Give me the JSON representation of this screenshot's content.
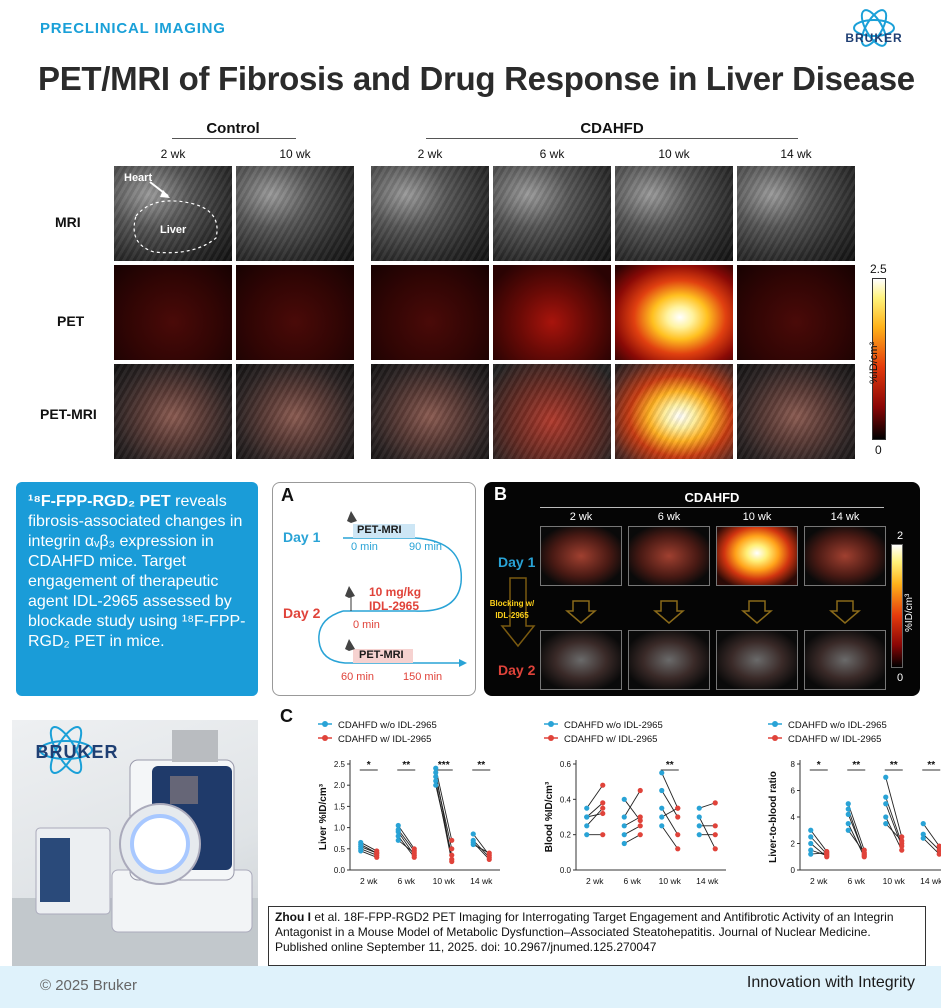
{
  "header": {
    "section_tag": "PRECLINICAL IMAGING",
    "logo_text": "BRUKER",
    "title": "PET/MRI of Fibrosis and Drug Response in Liver Disease"
  },
  "imaging_grid": {
    "group_control": "Control",
    "group_cdahfd": "CDAHFD",
    "control_timepoints": [
      "2 wk",
      "10 wk"
    ],
    "cdahfd_timepoints": [
      "2 wk",
      "6 wk",
      "10 wk",
      "14 wk"
    ],
    "rows": [
      "MRI",
      "PET",
      "PET-MRI"
    ],
    "annotations": {
      "heart": "Heart",
      "liver": "Liver"
    },
    "colorbar": {
      "max": "2.5",
      "min": "0",
      "unit": "%ID/cm³"
    }
  },
  "info_box": {
    "part1_bold": "¹⁸F-FPP-RGD₂ PET",
    "part1_rest": " reveals fibrosis-associated changes in integrin αᵥβ₃ expression in CDAHFD mice. Target engagement of therapeutic agent IDL-2965 assessed by blockade study using ¹⁸F-FPP-RGD₂ PET in mice."
  },
  "panel_a": {
    "letter": "A",
    "day1": "Day 1",
    "day2": "Day 2",
    "pet_mri_1": "PET-MRI",
    "t0_day1": "0 min",
    "t90": "90 min",
    "dose": "10 mg/kg",
    "drug": "IDL-2965",
    "t0_day2": "0 min",
    "pet_mri_2": "PET-MRI",
    "t60": "60 min",
    "t150": "150 min"
  },
  "panel_b": {
    "letter": "B",
    "title": "CDAHFD",
    "timepoints": [
      "2 wk",
      "6 wk",
      "10 wk",
      "14 wk"
    ],
    "day1": "Day 1",
    "day2": "Day 2",
    "blocking": "Blocking w/ IDL-2965",
    "cb_max": "2",
    "cb_min": "0",
    "cb_unit": "%ID/cm³"
  },
  "photo": {
    "logo_text": "BRUKER"
  },
  "panel_c": {
    "letter": "C"
  },
  "chart_data": [
    {
      "type": "scatter",
      "ylabel": "Liver %ID/cm³",
      "categories": [
        "2 wk",
        "6 wk",
        "10 wk",
        "14 wk"
      ],
      "ylim": [
        0,
        2.5
      ],
      "yticks": [
        "0.0",
        "0.5",
        "1.0",
        "1.5",
        "2.0",
        "2.5"
      ],
      "significance": [
        "*",
        "**",
        "***",
        "**"
      ],
      "legend": [
        "CDAHFD w/o IDL-2965",
        "CDAHFD w/ IDL-2965"
      ],
      "series": [
        {
          "name": "CDAHFD w/o IDL-2965",
          "color": "#29a3d6",
          "values": [
            [
              0.65,
              0.55,
              0.5,
              0.45,
              0.6
            ],
            [
              1.05,
              0.9,
              0.8,
              0.95,
              0.7
            ],
            [
              2.4,
              2.2,
              2.0,
              2.1,
              2.3
            ],
            [
              0.85,
              0.7,
              0.65,
              0.6
            ]
          ]
        },
        {
          "name": "CDAHFD w/ IDL-2965",
          "color": "#e0433a",
          "values": [
            [
              0.45,
              0.4,
              0.35,
              0.3,
              0.4
            ],
            [
              0.5,
              0.35,
              0.3,
              0.45,
              0.4
            ],
            [
              0.7,
              0.5,
              0.35,
              0.2,
              0.25
            ],
            [
              0.35,
              0.3,
              0.25,
              0.4
            ]
          ]
        }
      ]
    },
    {
      "type": "scatter",
      "ylabel": "Blood %ID/cm³",
      "categories": [
        "2 wk",
        "6 wk",
        "10 wk",
        "14 wk"
      ],
      "ylim": [
        0,
        0.6
      ],
      "yticks": [
        "0.0",
        "0.2",
        "0.4",
        "0.6"
      ],
      "significance": [
        "",
        "",
        "**",
        ""
      ],
      "legend": [
        "CDAHFD w/o IDL-2965",
        "CDAHFD w/ IDL-2965"
      ],
      "series": [
        {
          "name": "CDAHFD w/o IDL-2965",
          "color": "#29a3d6",
          "values": [
            [
              0.35,
              0.3,
              0.25,
              0.2,
              0.3
            ],
            [
              0.3,
              0.25,
              0.2,
              0.15,
              0.4
            ],
            [
              0.55,
              0.45,
              0.35,
              0.25,
              0.3
            ],
            [
              0.35,
              0.25,
              0.2,
              0.3
            ]
          ]
        },
        {
          "name": "CDAHFD w/ IDL-2965",
          "color": "#e0433a",
          "values": [
            [
              0.48,
              0.38,
              0.35,
              0.2,
              0.32
            ],
            [
              0.45,
              0.3,
              0.25,
              0.2,
              0.28
            ],
            [
              0.35,
              0.3,
              0.2,
              0.12,
              0.35
            ],
            [
              0.38,
              0.25,
              0.2,
              0.12
            ]
          ]
        }
      ]
    },
    {
      "type": "scatter",
      "ylabel": "Liver-to-blood ratio",
      "categories": [
        "2 wk",
        "6 wk",
        "10 wk",
        "14 wk"
      ],
      "ylim": [
        0,
        8
      ],
      "yticks": [
        "0",
        "2",
        "4",
        "6",
        "8"
      ],
      "significance": [
        "*",
        "**",
        "**",
        "**"
      ],
      "legend": [
        "CDAHFD w/o IDL-2965",
        "CDAHFD w/ IDL-2965"
      ],
      "series": [
        {
          "name": "CDAHFD w/o IDL-2965",
          "color": "#29a3d6",
          "values": [
            [
              3.0,
              2.5,
              2.0,
              1.5,
              1.2
            ],
            [
              5.0,
              4.2,
              3.5,
              3.0,
              4.6
            ],
            [
              7.0,
              5.5,
              5.0,
              4.0,
              3.5
            ],
            [
              3.5,
              2.7,
              2.4
            ]
          ]
        },
        {
          "name": "CDAHFD w/ IDL-2965",
          "color": "#e0433a",
          "values": [
            [
              1.4,
              1.2,
              1.0,
              1.1,
              1.3
            ],
            [
              1.5,
              1.2,
              1.0,
              1.3,
              1.1
            ],
            [
              2.5,
              2.0,
              1.8,
              1.5,
              2.2
            ],
            [
              1.8,
              1.5,
              1.2
            ]
          ]
        }
      ]
    }
  ],
  "citation": {
    "bold": "Zhou I",
    "rest": " et al. 18F-FPP-RGD2 PET Imaging for Interrogating Target Engagement and Antifibrotic Activity of an Integrin Antagonist in a Mouse Model of Metabolic Dysfunction–Associated Steatohepatitis. Journal of Nuclear Medicine. Published online September 11, 2025. doi: 10.2967/jnumed.125.270047"
  },
  "footer": {
    "copyright": "© 2025 Bruker",
    "tagline": "Innovation with Integrity"
  },
  "colors": {
    "accent": "#1a9cd8",
    "series_without": "#29a3d6",
    "series_with": "#e0433a",
    "footer_bg": "#dff2fb"
  }
}
